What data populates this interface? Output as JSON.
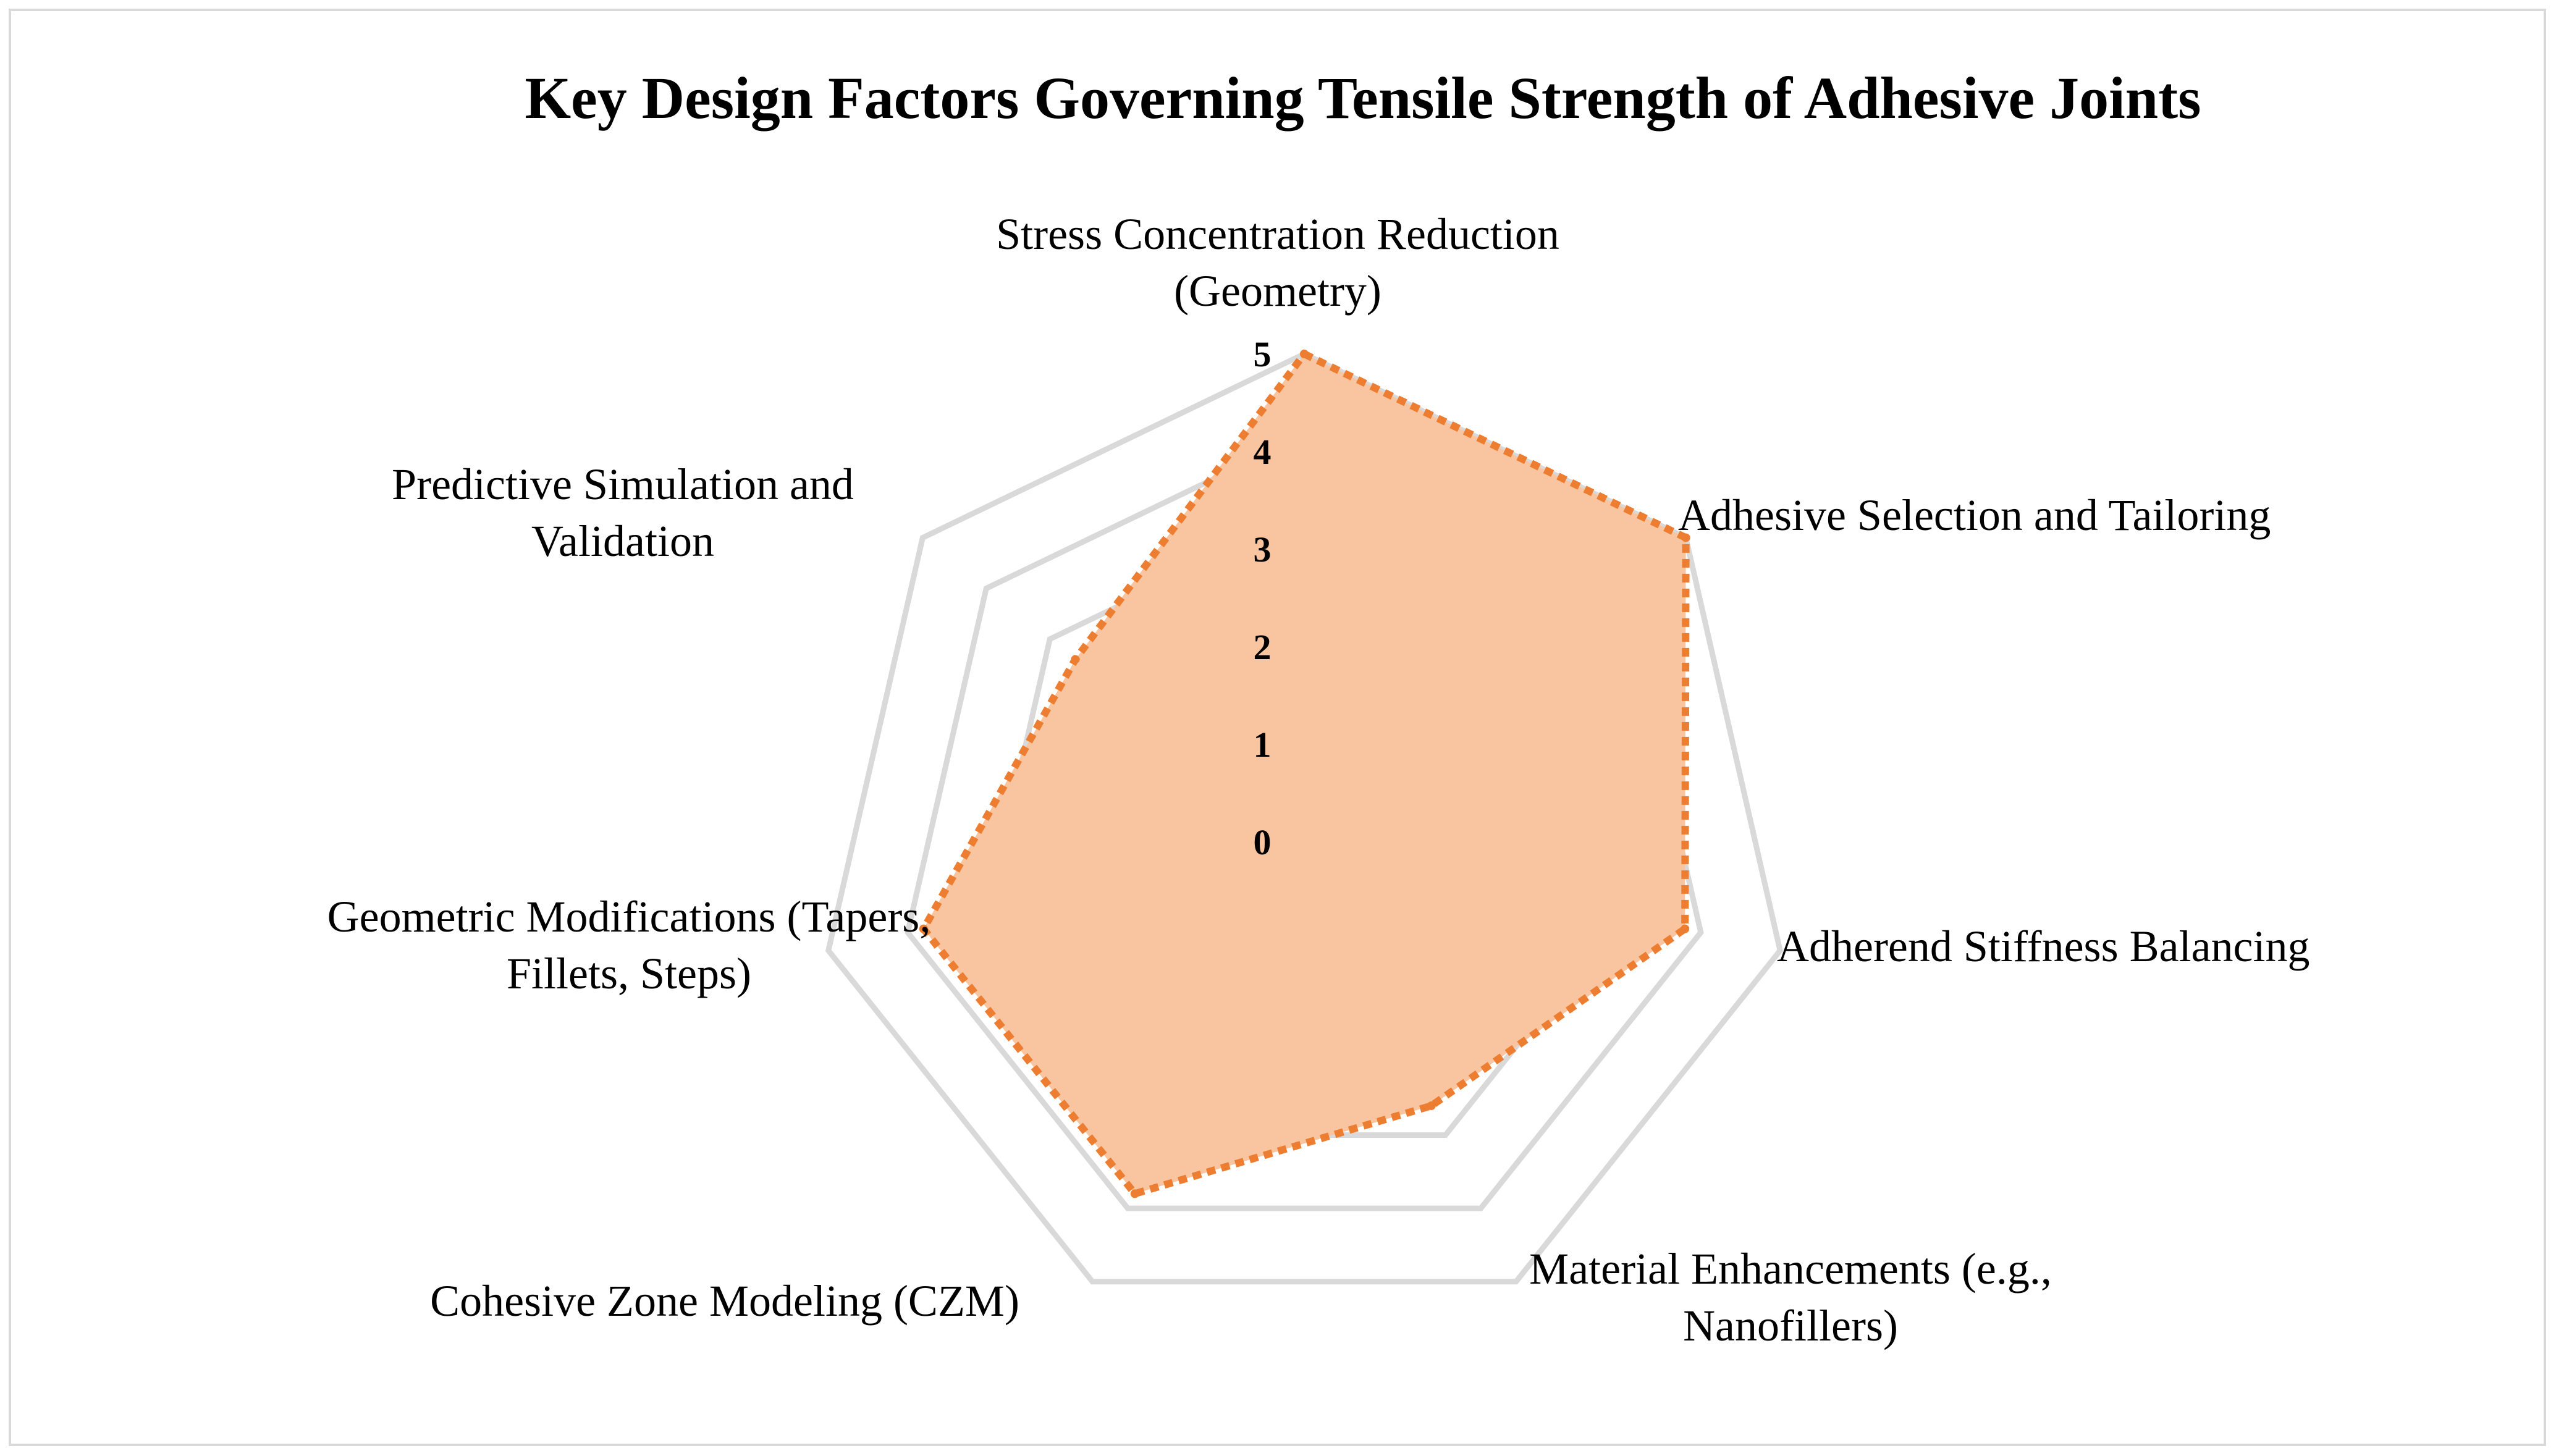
{
  "chart_data": {
    "type": "radar",
    "title": "Key Design Factors Governing Tensile Strength of Adhesive Joints",
    "categories": [
      "Stress Concentration Reduction (Geometry)",
      "Adhesive Selection and Tailoring",
      "Adherend Stiffness Balancing",
      "Material Enhancements (e.g., Nanofillers)",
      "Cohesive Zone Modeling (CZM)",
      "Geometric Modifications (Tapers, Fillets, Steps)",
      "Predictive Simulation and Validation"
    ],
    "category_lines": [
      [
        "Stress Concentration Reduction",
        "(Geometry)"
      ],
      [
        "Adhesive Selection and Tailoring"
      ],
      [
        "Adherend Stiffness Balancing"
      ],
      [
        "Material Enhancements (e.g.,",
        "Nanofillers)"
      ],
      [
        "Cohesive Zone Modeling (CZM)"
      ],
      [
        "Geometric Modifications (Tapers,",
        "Fillets, Steps)"
      ],
      [
        "Predictive Simulation and",
        "Validation"
      ]
    ],
    "series": [
      {
        "values": [
          5,
          5,
          4,
          3,
          4,
          4,
          3
        ]
      }
    ],
    "rlim": [
      0,
      5
    ],
    "ticks": [
      "0",
      "1",
      "2",
      "3",
      "4",
      "5"
    ],
    "grid": true,
    "legend": "none",
    "colors": {
      "fill": "#f8c49e",
      "line": "#ed7d31",
      "grid": "#d9d9d9"
    }
  }
}
